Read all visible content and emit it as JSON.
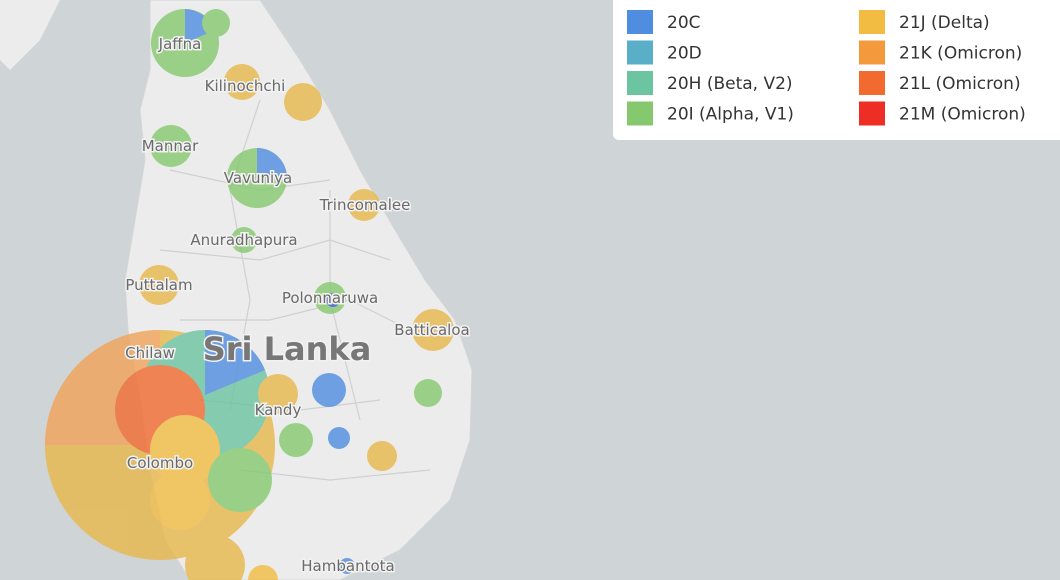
{
  "map": {
    "places": [
      {
        "label": "Jaffna",
        "x": 0
      },
      {
        "label": "Kilinochchi"
      },
      {
        "label": "Mannar"
      },
      {
        "label": "Vavuniya"
      },
      {
        "label": "Trincomalee"
      },
      {
        "label": "Anuradhapura"
      },
      {
        "label": "Puttalam"
      },
      {
        "label": "Polonnaruwa"
      },
      {
        "label": "Batticaloa"
      },
      {
        "label": "Chilaw"
      },
      {
        "label": "Kandy"
      },
      {
        "label": "Colombo"
      },
      {
        "label": "Hambantota"
      }
    ],
    "country": "Sri Lanka"
  },
  "legend": {
    "items": [
      {
        "label": "20C",
        "color": "#4f8de0"
      },
      {
        "label": "20D",
        "color": "#5aaec8"
      },
      {
        "label": "20H (Beta, V2)",
        "color": "#6cc4a0"
      },
      {
        "label": "20I (Alpha, V1)",
        "color": "#86c86e"
      },
      {
        "label": "21J (Delta)",
        "color": "#f2bc43"
      },
      {
        "label": "21K (Omicron)",
        "color": "#f59a3c"
      },
      {
        "label": "21L (Omicron)",
        "color": "#f26a2e"
      },
      {
        "label": "21M (Omicron)",
        "color": "#ee2e24"
      }
    ]
  }
}
